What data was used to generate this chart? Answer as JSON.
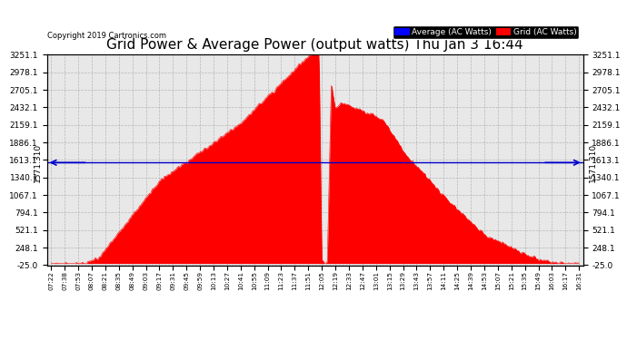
{
  "title": "Grid Power & Average Power (output watts) Thu Jan 3 16:44",
  "copyright": "Copyright 2019 Cartronics.com",
  "ylim": [
    -25.0,
    3251.1
  ],
  "yticks": [
    -25.0,
    248.1,
    521.1,
    794.1,
    1067.1,
    1340.1,
    1613.1,
    1886.1,
    2159.1,
    2432.1,
    2705.1,
    2978.1,
    3251.1
  ],
  "average_value": 1571.31,
  "average_label": "1571.310",
  "fill_color": "#ff0000",
  "avg_line_color": "#0000cc",
  "background_color": "#e8e8e8",
  "legend_avg_color": "#0000ff",
  "legend_grid_color": "#ff0000",
  "title_fontsize": 11,
  "xtick_labels": [
    "07:22",
    "07:38",
    "07:53",
    "08:07",
    "08:21",
    "08:35",
    "08:49",
    "09:03",
    "09:17",
    "09:31",
    "09:45",
    "09:59",
    "10:13",
    "10:27",
    "10:41",
    "10:55",
    "11:09",
    "11:23",
    "11:37",
    "11:51",
    "12:05",
    "12:19",
    "12:33",
    "12:47",
    "13:01",
    "13:15",
    "13:29",
    "13:43",
    "13:57",
    "14:11",
    "14:25",
    "14:39",
    "14:53",
    "15:07",
    "15:21",
    "15:35",
    "15:49",
    "16:03",
    "16:17",
    "16:31"
  ]
}
